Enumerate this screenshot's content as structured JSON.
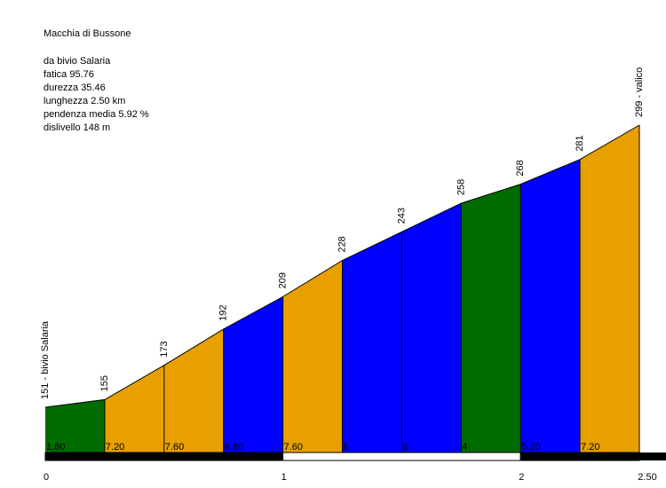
{
  "info": {
    "name": "Macchia di Bussone",
    "from": "da bivio Salaria",
    "fatica": "fatica 95.76",
    "durezza": "durezza 35.46",
    "lunghezza": "lunghezza 2.50 km",
    "pendenza": "pendenza media 5.92 %",
    "dislivello": "dislivello 148 m"
  },
  "colors": {
    "green": "#006c00",
    "orange": "#e7a000",
    "blue": "#0000ff",
    "black": "#000000"
  },
  "chart_data": {
    "type": "area",
    "title": "Macchia di Bussone",
    "x_unit": "km",
    "xlim": [
      0,
      2.5
    ],
    "x_ticks": [
      "0",
      "1",
      "2",
      "2.50"
    ],
    "km_bar": "alternating black/white per km",
    "points": [
      {
        "km": 0.0,
        "alt": 151,
        "label": "151 - bivio Salaria"
      },
      {
        "km": 0.25,
        "alt": 155,
        "label": "155"
      },
      {
        "km": 0.5,
        "alt": 173,
        "label": "173"
      },
      {
        "km": 0.75,
        "alt": 192,
        "label": "192"
      },
      {
        "km": 1.0,
        "alt": 209,
        "label": "209"
      },
      {
        "km": 1.25,
        "alt": 228,
        "label": "228"
      },
      {
        "km": 1.5,
        "alt": 243,
        "label": "243"
      },
      {
        "km": 1.75,
        "alt": 258,
        "label": "258"
      },
      {
        "km": 2.0,
        "alt": 268,
        "label": "268"
      },
      {
        "km": 2.25,
        "alt": 281,
        "label": "281"
      },
      {
        "km": 2.5,
        "alt": 299,
        "label": "299 - valico"
      }
    ],
    "segments": [
      {
        "gradient": "1.60",
        "color": "green"
      },
      {
        "gradient": "7.20",
        "color": "orange"
      },
      {
        "gradient": "7.60",
        "color": "orange"
      },
      {
        "gradient": "6.80",
        "color": "blue"
      },
      {
        "gradient": "7.60",
        "color": "orange"
      },
      {
        "gradient": "6",
        "color": "blue"
      },
      {
        "gradient": "6",
        "color": "blue"
      },
      {
        "gradient": "4",
        "color": "green"
      },
      {
        "gradient": "5.20",
        "color": "blue"
      },
      {
        "gradient": "7.20",
        "color": "orange"
      }
    ]
  }
}
